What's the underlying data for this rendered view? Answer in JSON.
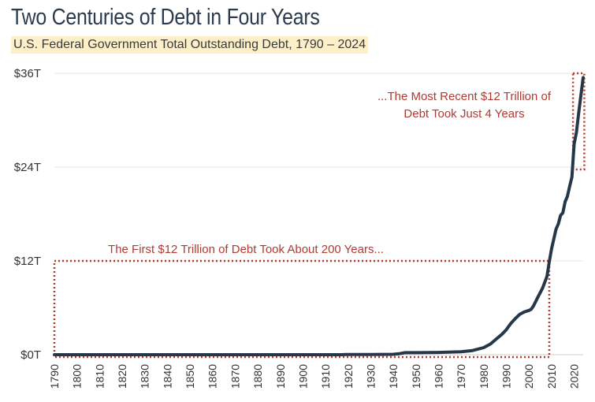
{
  "header": {
    "title": "Two Centuries of Debt in Four Years",
    "subtitle": "U.S. Federal Government Total Outstanding Debt, 1790 – 2024"
  },
  "colors": {
    "line": "#263848",
    "annotation": "#b13a32",
    "grid": "#e6e6e6",
    "subtitle_highlight": "#fdf0c8"
  },
  "chart_data": {
    "type": "line",
    "title": "Two Centuries of Debt in Four Years",
    "subtitle": "U.S. Federal Government Total Outstanding Debt, 1790 – 2024",
    "xlabel": "",
    "ylabel": "",
    "xlim": [
      1790,
      2024
    ],
    "ylim": [
      0,
      36
    ],
    "grid": true,
    "y_ticks": [
      {
        "value": 0,
        "label": "$0T"
      },
      {
        "value": 12,
        "label": "$12T"
      },
      {
        "value": 24,
        "label": "$24T"
      },
      {
        "value": 36,
        "label": "$36T"
      }
    ],
    "x_ticks": [
      1790,
      1800,
      1810,
      1820,
      1830,
      1840,
      1850,
      1860,
      1870,
      1880,
      1890,
      1900,
      1910,
      1920,
      1930,
      1940,
      1950,
      1960,
      1970,
      1980,
      1990,
      2000,
      2010,
      2020
    ],
    "series": [
      {
        "name": "",
        "unit": "trillions of dollars",
        "points": [
          [
            1790,
            0.0001
          ],
          [
            1800,
            0.0001
          ],
          [
            1810,
            0.0001
          ],
          [
            1820,
            0.0001
          ],
          [
            1830,
            0.0001
          ],
          [
            1840,
            0.0001
          ],
          [
            1850,
            0.0001
          ],
          [
            1860,
            0.0001
          ],
          [
            1870,
            0.002
          ],
          [
            1880,
            0.002
          ],
          [
            1890,
            0.001
          ],
          [
            1900,
            0.001
          ],
          [
            1910,
            0.001
          ],
          [
            1917,
            0.003
          ],
          [
            1919,
            0.025
          ],
          [
            1930,
            0.016
          ],
          [
            1940,
            0.05
          ],
          [
            1943,
            0.14
          ],
          [
            1945,
            0.26
          ],
          [
            1950,
            0.26
          ],
          [
            1960,
            0.29
          ],
          [
            1970,
            0.37
          ],
          [
            1975,
            0.53
          ],
          [
            1980,
            0.91
          ],
          [
            1983,
            1.37
          ],
          [
            1986,
            2.12
          ],
          [
            1988,
            2.6
          ],
          [
            1990,
            3.21
          ],
          [
            1992,
            4.0
          ],
          [
            1994,
            4.64
          ],
          [
            1996,
            5.18
          ],
          [
            1998,
            5.48
          ],
          [
            2000,
            5.67
          ],
          [
            2001,
            5.81
          ],
          [
            2002,
            6.23
          ],
          [
            2004,
            7.38
          ],
          [
            2006,
            8.5
          ],
          [
            2008,
            10.02
          ],
          [
            2009,
            11.9
          ],
          [
            2010,
            13.56
          ],
          [
            2011,
            14.79
          ],
          [
            2012,
            16.07
          ],
          [
            2013,
            16.74
          ],
          [
            2014,
            17.82
          ],
          [
            2015,
            18.15
          ],
          [
            2016,
            19.57
          ],
          [
            2017,
            20.24
          ],
          [
            2018,
            21.52
          ],
          [
            2019,
            22.72
          ],
          [
            2020,
            26.95
          ],
          [
            2021,
            28.43
          ],
          [
            2022,
            30.93
          ],
          [
            2023,
            33.17
          ],
          [
            2024,
            35.46
          ]
        ]
      }
    ],
    "annotations": [
      {
        "text_lines": [
          "The First $12 Trillion of Debt Took About 200 Years..."
        ],
        "box": {
          "x": [
            1790,
            2009
          ],
          "y": [
            0,
            12
          ]
        }
      },
      {
        "text_lines": [
          "...The Most Recent $12 Trillion of",
          "Debt Took Just 4 Years"
        ],
        "box": {
          "x": [
            2019.5,
            2024.5
          ],
          "y": [
            24,
            36
          ]
        }
      }
    ]
  }
}
